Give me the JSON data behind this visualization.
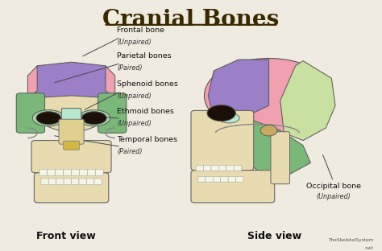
{
  "title": "Cranial Bones",
  "bg_color": "#f0ebe0",
  "title_color": "#3a2800",
  "title_fontsize": 20,
  "front_view_label": "Front view",
  "side_view_label": "Side view",
  "watermark_line1": "TheSkeletalSystem",
  "watermark_line2": "net",
  "colors": {
    "frontal": "#9b7fc7",
    "parietal_front": "#f0a0b0",
    "parietal_side": "#f0a0b0",
    "temporal_front": "#7ab87a",
    "temporal_side": "#7ab87a",
    "sphenoid": "#a8d8a8",
    "ethmoid": "#b8e8d0",
    "occipital": "#c8e0a0",
    "skull_base": "#e8dbb0"
  }
}
